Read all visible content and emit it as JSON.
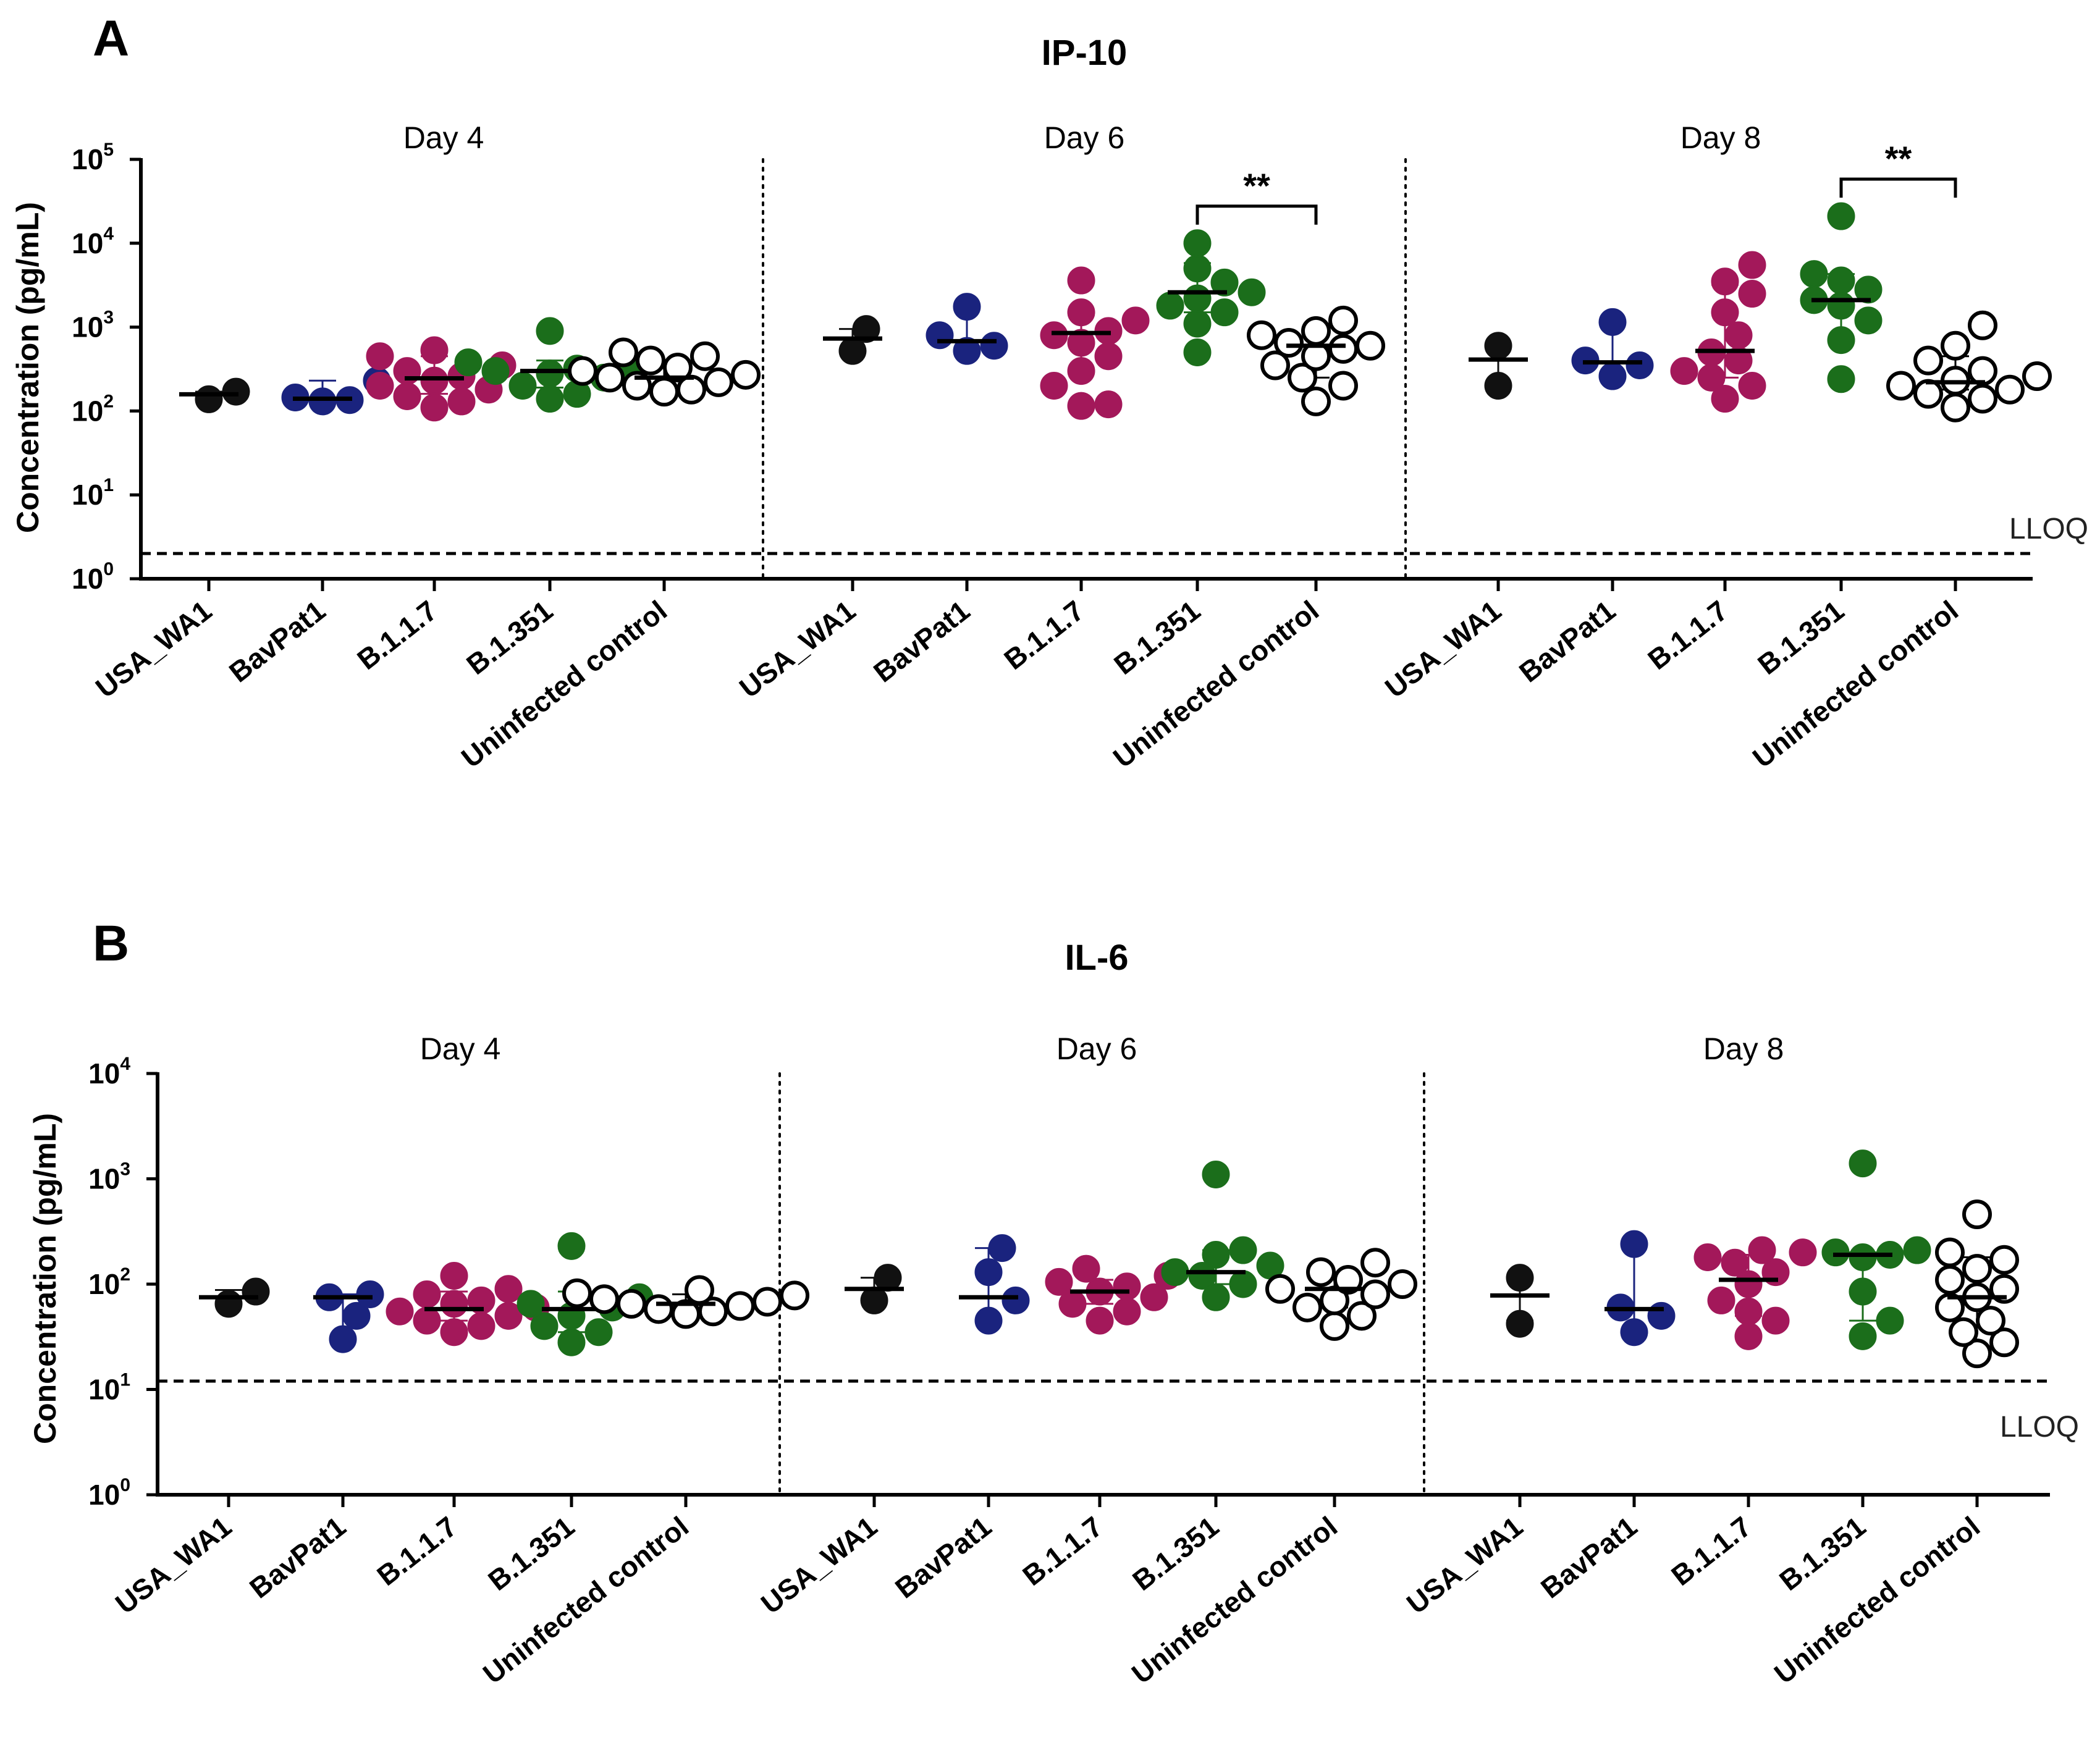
{
  "colors": {
    "USA_WA1": "#111111",
    "BavPat1": "#1a237e",
    "B.1.1.7": "#a3185a",
    "B.1.351": "#1b6e1b",
    "Uninfected control": "#ffffff",
    "axis": "#000000"
  },
  "chart_data": [
    {
      "type": "scatter",
      "panel": "A",
      "title": "IP-10",
      "ylabel": "Concentration (pg/mL)",
      "yscale": "log10",
      "ylim": [
        1,
        100000
      ],
      "yticks": [
        {
          "base": "10",
          "exp": "0"
        },
        {
          "base": "10",
          "exp": "1"
        },
        {
          "base": "10",
          "exp": "2"
        },
        {
          "base": "10",
          "exp": "3"
        },
        {
          "base": "10",
          "exp": "4"
        },
        {
          "base": "10",
          "exp": "5"
        }
      ],
      "lloq": 2.0,
      "lloq_label": "LLOQ",
      "categories": [
        "USA_WA1",
        "BavPat1",
        "B.1.1.7",
        "B.1.351",
        "Uninfected control"
      ],
      "days": [
        {
          "label": "Day 4",
          "groups": [
            {
              "name": "USA_WA1",
              "median": 158,
              "lower": 140,
              "upper": 170,
              "points": [
                138,
                170
              ]
            },
            {
              "name": "BavPat1",
              "median": 140,
              "lower": 130,
              "upper": 230,
              "points": [
                130,
                135,
                145,
                230
              ]
            },
            {
              "name": "B.1.1.7",
              "median": 245,
              "lower": 160,
              "upper": 450,
              "points": [
                110,
                130,
                150,
                180,
                200,
                230,
                260,
                300,
                350,
                450,
                530
              ]
            },
            {
              "name": "B.1.351",
              "median": 300,
              "lower": 190,
              "upper": 400,
              "points": [
                140,
                160,
                200,
                250,
                280,
                300,
                320,
                350,
                380,
                900
              ]
            },
            {
              "name": "Uninfected control",
              "median": 250,
              "lower": 190,
              "upper": 390,
              "points": [
                170,
                180,
                200,
                220,
                250,
                270,
                300,
                330,
                400,
                450,
                500
              ]
            }
          ]
        },
        {
          "label": "Day 6",
          "groups": [
            {
              "name": "USA_WA1",
              "median": 730,
              "lower": 520,
              "upper": 950,
              "points": [
                520,
                950
              ]
            },
            {
              "name": "BavPat1",
              "median": 680,
              "lower": 520,
              "upper": 1750,
              "points": [
                520,
                600,
                800,
                1750
              ]
            },
            {
              "name": "B.1.1.7",
              "median": 850,
              "lower": 280,
              "upper": 1400,
              "points": [
                115,
                120,
                200,
                300,
                450,
                650,
                800,
                900,
                1200,
                1500,
                3600
              ]
            },
            {
              "name": "B.1.351",
              "median": 2600,
              "lower": 1500,
              "upper": 5800,
              "points": [
                500,
                1100,
                1500,
                1800,
                2200,
                2600,
                3400,
                5000,
                10000
              ]
            },
            {
              "name": "Uninfected control",
              "median": 600,
              "lower": 250,
              "upper": 900,
              "points": [
                130,
                200,
                250,
                350,
                450,
                550,
                600,
                650,
                800,
                900,
                1200
              ]
            }
          ]
        },
        {
          "label": "Day 8",
          "groups": [
            {
              "name": "USA_WA1",
              "median": 410,
              "lower": 200,
              "upper": 600,
              "points": [
                200,
                600
              ]
            },
            {
              "name": "BavPat1",
              "median": 380,
              "lower": 260,
              "upper": 1150,
              "points": [
                260,
                350,
                400,
                1150
              ]
            },
            {
              "name": "B.1.1.7",
              "median": 520,
              "lower": 250,
              "upper": 3200,
              "points": [
                140,
                200,
                250,
                300,
                400,
                500,
                800,
                1500,
                2500,
                3500,
                5500
              ]
            },
            {
              "name": "B.1.351",
              "median": 2100,
              "lower": 700,
              "upper": 4300,
              "points": [
                240,
                700,
                1200,
                1800,
                2100,
                2800,
                3600,
                4300,
                21000
              ]
            },
            {
              "name": "Uninfected control",
              "median": 220,
              "lower": 180,
              "upper": 450,
              "points": [
                110,
                140,
                160,
                180,
                200,
                230,
                260,
                300,
                400,
                600,
                1050
              ]
            }
          ]
        }
      ],
      "significance": [
        {
          "day_index": 1,
          "from": "B.1.351",
          "to": "Uninfected control",
          "label": "**"
        },
        {
          "day_index": 2,
          "from": "B.1.351",
          "to": "Uninfected control",
          "label": "**"
        }
      ]
    },
    {
      "type": "scatter",
      "panel": "B",
      "title": "IL-6",
      "ylabel": "Concentration (pg/mL)",
      "yscale": "log10",
      "ylim": [
        1,
        10000
      ],
      "yticks": [
        {
          "base": "10",
          "exp": "0"
        },
        {
          "base": "10",
          "exp": "1"
        },
        {
          "base": "10",
          "exp": "2"
        },
        {
          "base": "10",
          "exp": "3"
        },
        {
          "base": "10",
          "exp": "4"
        }
      ],
      "lloq": 12,
      "lloq_label": "LLOQ",
      "categories": [
        "USA_WA1",
        "BavPat1",
        "B.1.1.7",
        "B.1.351",
        "Uninfected control"
      ],
      "days": [
        {
          "label": "Day 4",
          "groups": [
            {
              "name": "USA_WA1",
              "median": 75,
              "lower": 65,
              "upper": 88,
              "points": [
                65,
                85
              ]
            },
            {
              "name": "BavPat1",
              "median": 75,
              "lower": 30,
              "upper": 80,
              "points": [
                30,
                50,
                75,
                80
              ]
            },
            {
              "name": "B.1.1.7",
              "median": 58,
              "lower": 45,
              "upper": 85,
              "points": [
                35,
                40,
                45,
                50,
                55,
                60,
                65,
                70,
                80,
                90,
                120
              ]
            },
            {
              "name": "B.1.351",
              "median": 58,
              "lower": 35,
              "upper": 85,
              "points": [
                28,
                35,
                40,
                50,
                60,
                65,
                75,
                230
              ]
            },
            {
              "name": "Uninfected control",
              "median": 65,
              "lower": 58,
              "upper": 80,
              "points": [
                52,
                55,
                58,
                62,
                65,
                68,
                72,
                78,
                82,
                88
              ]
            }
          ]
        },
        {
          "label": "Day 6",
          "groups": [
            {
              "name": "USA_WA1",
              "median": 90,
              "lower": 70,
              "upper": 115,
              "points": [
                70,
                115
              ]
            },
            {
              "name": "BavPat1",
              "median": 75,
              "lower": 45,
              "upper": 220,
              "points": [
                45,
                70,
                130,
                220
              ]
            },
            {
              "name": "B.1.1.7",
              "median": 85,
              "lower": 65,
              "upper": 110,
              "points": [
                45,
                55,
                65,
                75,
                85,
                95,
                105,
                120,
                140
              ]
            },
            {
              "name": "B.1.351",
              "median": 130,
              "lower": 100,
              "upper": 210,
              "points": [
                75,
                100,
                120,
                130,
                150,
                190,
                210,
                1100
              ]
            },
            {
              "name": "Uninfected control",
              "median": 90,
              "lower": 60,
              "upper": 115,
              "points": [
                40,
                50,
                60,
                70,
                80,
                90,
                100,
                110,
                130,
                160
              ]
            }
          ]
        },
        {
          "label": "Day 8",
          "groups": [
            {
              "name": "USA_WA1",
              "median": 78,
              "lower": 45,
              "upper": 115,
              "points": [
                42,
                115
              ]
            },
            {
              "name": "BavPat1",
              "median": 58,
              "lower": 35,
              "upper": 240,
              "points": [
                35,
                50,
                60,
                240
              ]
            },
            {
              "name": "B.1.1.7",
              "median": 110,
              "lower": 50,
              "upper": 190,
              "points": [
                32,
                45,
                55,
                70,
                100,
                130,
                160,
                180,
                200,
                210
              ]
            },
            {
              "name": "B.1.351",
              "median": 190,
              "lower": 45,
              "upper": 200,
              "points": [
                32,
                45,
                85,
                180,
                190,
                200,
                210,
                1400
              ]
            },
            {
              "name": "Uninfected control",
              "median": 75,
              "lower": 40,
              "upper": 180,
              "points": [
                22,
                28,
                35,
                45,
                60,
                75,
                90,
                110,
                140,
                170,
                200,
                460
              ]
            }
          ]
        }
      ],
      "significance": []
    }
  ]
}
